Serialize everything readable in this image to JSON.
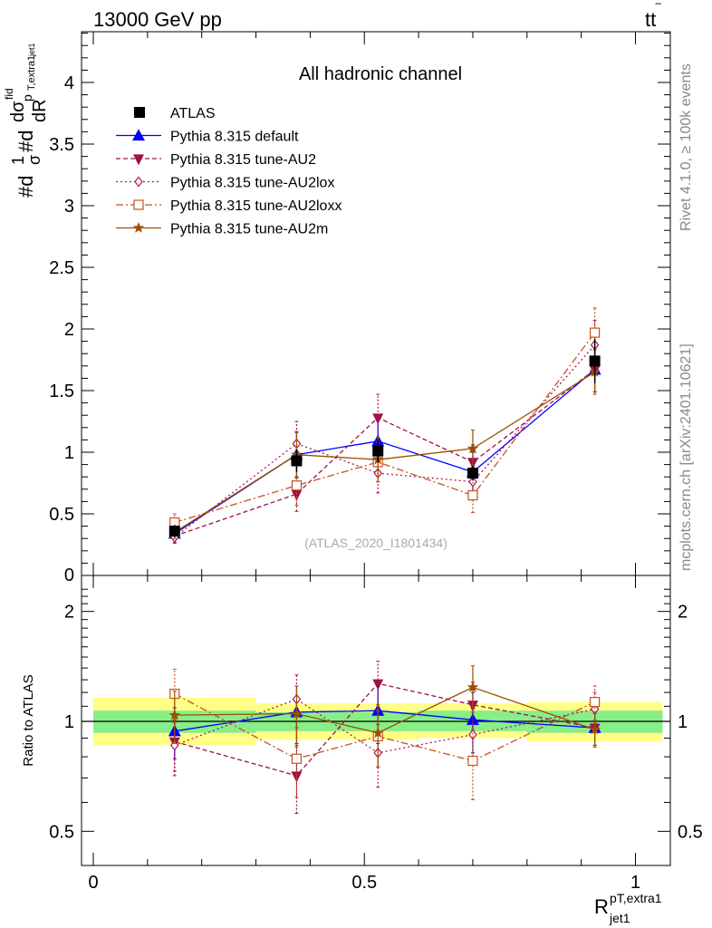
{
  "header": {
    "left": "13000 GeV pp",
    "right_base": "tt",
    "right_bar": "‾"
  },
  "side_labels": {
    "rivet": "Rivet 4.1.0, ≥ 100k events",
    "mcplots": "mcplots.cern.ch [arXiv:2401.10621]"
  },
  "chart_data": [
    {
      "type": "scatter",
      "title": "All hadronic channel",
      "watermark": "(ATLAS_2020_I1801434)",
      "ylabel_parts": [
        "#d",
        "1",
        "σ",
        "#d",
        "dσ",
        "fid",
        "p",
        "T,extra1",
        "dR",
        "jet1"
      ],
      "xlim": [
        -0.05,
        1.07
      ],
      "ylim": [
        0,
        4.45
      ],
      "y_ticks": [
        0.5,
        1,
        1.5,
        2,
        2.5,
        3,
        3.5,
        4
      ],
      "y_tick_labels": [
        "0.5",
        "1",
        "1.5",
        "2",
        "2.5",
        "3",
        "3.5",
        "4"
      ],
      "y_zero_label": "0",
      "x": [
        0.15,
        0.375,
        0.525,
        0.7,
        0.925
      ],
      "data": {
        "name": "ATLAS",
        "values": [
          0.36,
          0.93,
          1.01,
          0.83,
          1.74
        ],
        "errors": [
          0.05,
          0.09,
          0.09,
          0.06,
          0.18
        ]
      },
      "series": [
        {
          "name": "Pythia 8.315 default",
          "color": "#0000ff",
          "dash": "",
          "marker": "triangle-up",
          "fill": true,
          "values": [
            0.34,
            0.98,
            1.09,
            0.84,
            1.67
          ],
          "errors": [
            0.05,
            0.18,
            0.2,
            0.16,
            0.18
          ]
        },
        {
          "name": "Pythia 8.315 tune-AU2",
          "color": "#a0104a",
          "dash": "5,3",
          "marker": "triangle-down",
          "fill": true,
          "values": [
            0.32,
            0.66,
            1.28,
            0.92,
            1.67
          ],
          "errors": [
            0.05,
            0.14,
            0.19,
            0.14,
            0.18
          ]
        },
        {
          "name": "Pythia 8.315 tune-AU2lox",
          "color": "#b01850",
          "dash": "2,3",
          "marker": "diamond",
          "fill": false,
          "values": [
            0.31,
            1.07,
            0.83,
            0.76,
            1.87
          ],
          "errors": [
            0.05,
            0.18,
            0.16,
            0.13,
            0.2
          ]
        },
        {
          "name": "Pythia 8.315 tune-AU2loxx",
          "color": "#c85020",
          "dash": "8,3,2,3",
          "marker": "square",
          "fill": false,
          "values": [
            0.43,
            0.73,
            0.92,
            0.65,
            1.97
          ],
          "errors": [
            0.07,
            0.16,
            0.16,
            0.14,
            0.2
          ]
        },
        {
          "name": "Pythia 8.315 tune-AU2m",
          "color": "#9a5000",
          "dash": "",
          "marker": "star",
          "fill": true,
          "values": [
            0.35,
            0.98,
            0.94,
            1.03,
            1.65
          ],
          "errors": [
            0.05,
            0.19,
            0.18,
            0.15,
            0.18
          ]
        }
      ]
    },
    {
      "type": "scatter",
      "ylabel": "Ratio to ATLAS",
      "xlabel_main": "R",
      "xlabel_sup": "pT,extra1",
      "xlabel_sub": "jet1",
      "ylim": [
        0.4,
        2.4
      ],
      "y_scale": "log",
      "y_ticks": [
        0.5,
        1,
        2
      ],
      "y_tick_labels": [
        "0.5",
        "1",
        "2"
      ],
      "x_ticks": [
        0,
        0.5,
        1
      ],
      "x_tick_labels": [
        "0",
        "0.5",
        "1"
      ],
      "bands": [
        {
          "x0": 0.0,
          "x1": 0.3,
          "inner": [
            0.93,
            1.07
          ],
          "outer": [
            0.86,
            1.16
          ]
        },
        {
          "x0": 0.3,
          "x1": 0.6,
          "inner": [
            0.94,
            1.06
          ],
          "outer": [
            0.89,
            1.12
          ]
        },
        {
          "x0": 0.6,
          "x1": 0.8,
          "inner": [
            0.94,
            1.07
          ],
          "outer": [
            0.9,
            1.12
          ]
        },
        {
          "x0": 0.8,
          "x1": 1.05,
          "inner": [
            0.93,
            1.07
          ],
          "outer": [
            0.88,
            1.13
          ]
        }
      ],
      "band_colors": {
        "inner": "#88ee88",
        "outer": "#ffff88"
      },
      "series": [
        {
          "name": "Pythia 8.315 default",
          "values": [
            0.94,
            1.06,
            1.07,
            1.01,
            0.96
          ],
          "errors": [
            0.15,
            0.19,
            0.2,
            0.19,
            0.1
          ]
        },
        {
          "name": "Pythia 8.315 tune-AU2",
          "values": [
            0.88,
            0.71,
            1.27,
            1.11,
            0.96
          ],
          "errors": [
            0.15,
            0.15,
            0.19,
            0.17,
            0.1
          ]
        },
        {
          "name": "Pythia 8.315 tune-AU2lox",
          "values": [
            0.86,
            1.15,
            0.82,
            0.92,
            1.08
          ],
          "errors": [
            0.15,
            0.19,
            0.16,
            0.16,
            0.12
          ]
        },
        {
          "name": "Pythia 8.315 tune-AU2loxx",
          "values": [
            1.19,
            0.79,
            0.91,
            0.78,
            1.13
          ],
          "errors": [
            0.2,
            0.17,
            0.16,
            0.17,
            0.12
          ]
        },
        {
          "name": "Pythia 8.315 tune-AU2m",
          "values": [
            1.04,
            1.05,
            0.93,
            1.24,
            0.95
          ],
          "errors": [
            0.17,
            0.2,
            0.18,
            0.18,
            0.1
          ]
        }
      ]
    }
  ]
}
